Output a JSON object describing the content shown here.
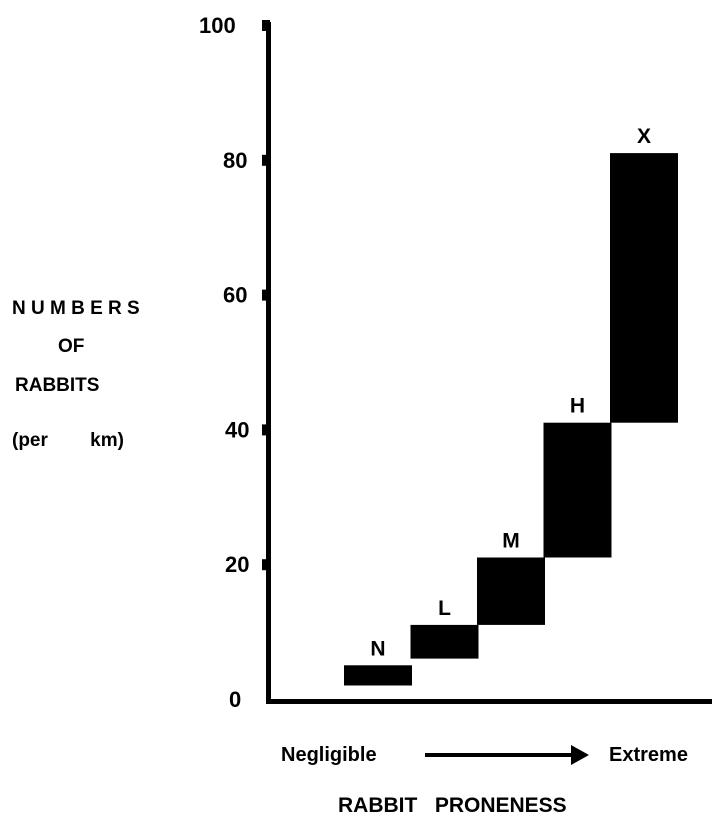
{
  "chart_data": {
    "type": "bar",
    "ylabel_lines": [
      "N U M B E R S",
      "OF",
      "RABBITS",
      "(per        km)"
    ],
    "xlabel": "RABBIT   PRONENESS",
    "x_start_label": "Negligible",
    "x_end_label": "Extreme",
    "yticks": [
      0,
      20,
      40,
      60,
      80,
      100
    ],
    "ylim": [
      0,
      100
    ],
    "series": [
      {
        "label": "N",
        "low": 2,
        "high": 5
      },
      {
        "label": "L",
        "low": 6,
        "high": 11
      },
      {
        "label": "M",
        "low": 11,
        "high": 21
      },
      {
        "label": "H",
        "low": 21,
        "high": 41
      },
      {
        "label": "X",
        "low": 41,
        "high": 81
      }
    ],
    "grid": false,
    "legend": "none",
    "bar_color": "#000000"
  }
}
